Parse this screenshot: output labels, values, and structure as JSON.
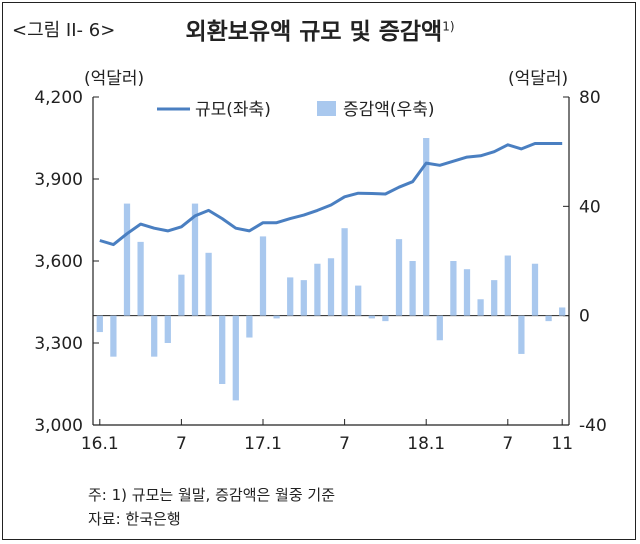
{
  "figure": {
    "label": "<그림 II- 6>",
    "title": "외환보유액 규모 및 증감액",
    "title_sup": "1)"
  },
  "notes": {
    "note": "주: 1) 규모는 월말, 증감액은 월중 기준",
    "source": "자료: 한국은행"
  },
  "colors": {
    "line": "#4a7fc1",
    "bar": "#a9c8ee",
    "axis": "#222222"
  },
  "chart_data": {
    "type": "bar+line",
    "title": "외환보유액 규모 및 증감액",
    "y_left": {
      "unit": "(억달러)",
      "ylim": [
        3000,
        4200
      ],
      "ticks": [
        "3,000",
        "3,300",
        "3,600",
        "3,900",
        "4,200"
      ],
      "tick_values": [
        3000,
        3300,
        3600,
        3900,
        4200
      ]
    },
    "y_right": {
      "unit": "(억달러)",
      "ylim": [
        -40,
        80
      ],
      "ticks": [
        "-40",
        "0",
        "40",
        "80"
      ],
      "tick_values": [
        -40,
        0,
        40,
        80
      ]
    },
    "x_tick_labels": [
      {
        "index": 0,
        "label": "16.1"
      },
      {
        "index": 6,
        "label": "7"
      },
      {
        "index": 12,
        "label": "17.1"
      },
      {
        "index": 18,
        "label": "7"
      },
      {
        "index": 24,
        "label": "18.1"
      },
      {
        "index": 30,
        "label": "7"
      },
      {
        "index": 34,
        "label": "11"
      }
    ],
    "grid": false,
    "legend": {
      "placement": "top",
      "line_label": "규모(좌축)",
      "bar_label": "증감액(우축)"
    },
    "categories": [
      "2016-01",
      "2016-02",
      "2016-03",
      "2016-04",
      "2016-05",
      "2016-06",
      "2016-07",
      "2016-08",
      "2016-09",
      "2016-10",
      "2016-11",
      "2016-12",
      "2017-01",
      "2017-02",
      "2017-03",
      "2017-04",
      "2017-05",
      "2017-06",
      "2017-07",
      "2017-08",
      "2017-09",
      "2017-10",
      "2017-11",
      "2017-12",
      "2018-01",
      "2018-02",
      "2018-03",
      "2018-04",
      "2018-05",
      "2018-06",
      "2018-07",
      "2018-08",
      "2018-09",
      "2018-10",
      "2018-11"
    ],
    "series": [
      {
        "name": "규모(좌축)",
        "kind": "line",
        "axis": "left",
        "values": [
          3675,
          3660,
          3700,
          3735,
          3720,
          3710,
          3725,
          3765,
          3785,
          3755,
          3720,
          3710,
          3740,
          3740,
          3755,
          3768,
          3785,
          3805,
          3835,
          3848,
          3847,
          3845,
          3870,
          3890,
          3958,
          3950,
          3965,
          3980,
          3985,
          4000,
          4025,
          4010,
          4030,
          4030,
          4030
        ]
      },
      {
        "name": "증감액(우축)",
        "kind": "bar",
        "axis": "right",
        "values": [
          -6,
          -15,
          41,
          27,
          -15,
          -10,
          15,
          41,
          23,
          -25,
          -31,
          -8,
          29,
          -1,
          14,
          13,
          19,
          21,
          32,
          11,
          -1,
          -2,
          28,
          20,
          65,
          -9,
          20,
          17,
          6,
          13,
          22,
          -14,
          19,
          -2,
          3
        ]
      }
    ]
  }
}
